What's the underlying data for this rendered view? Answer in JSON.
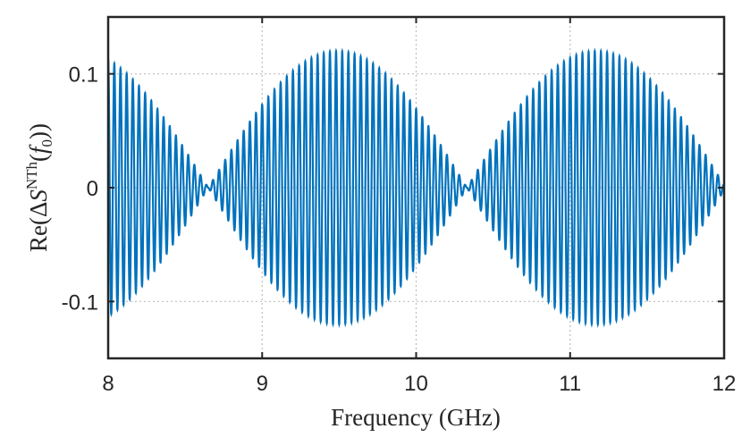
{
  "chart_data": {
    "type": "line",
    "xlabel": "Frequency (GHz)",
    "ylabel_parts": {
      "prefix": "Re(",
      "delta": "Δ",
      "symbol": "S",
      "superscript": "NTh",
      "open": "(",
      "arg": "f",
      "subscript": "0",
      "close": "))"
    },
    "xlim": [
      8,
      12
    ],
    "ylim": [
      -0.15,
      0.15
    ],
    "xticks": [
      8,
      9,
      10,
      11,
      12
    ],
    "xtick_labels": [
      "8",
      "9",
      "10",
      "11",
      "12"
    ],
    "yticks": [
      -0.1,
      0,
      0.1
    ],
    "ytick_labels": [
      "-0.1",
      "0",
      "0.1"
    ],
    "grid": true,
    "color": "#0072BD",
    "series": [
      {
        "description": "rapid oscillation with beating envelope",
        "carrier_cycles_per_ghz": 25,
        "envelope_peak": 0.12,
        "envelope_nodes_ghz": [
          8.65,
          10.33,
          12.02
        ],
        "envelope_maxima_ghz": [
          9.47,
          11.17
        ]
      }
    ]
  }
}
